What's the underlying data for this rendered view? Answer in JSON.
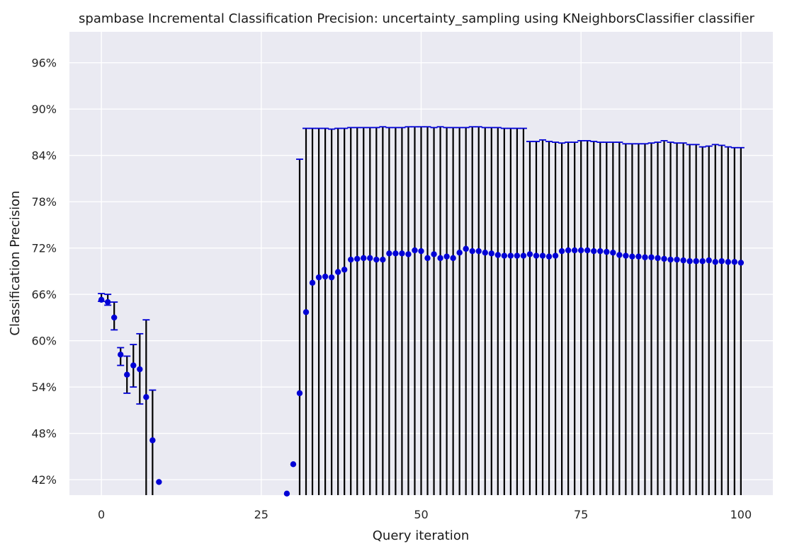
{
  "chart_data": {
    "type": "scatter",
    "title": "spambase Incremental Classification Precision: uncertainty_sampling using KNeighborsClassifier classifier",
    "xlabel": "Query iteration",
    "ylabel": "Classification Precision",
    "xlim": [
      -5,
      105
    ],
    "ylim": [
      0.4,
      1.0
    ],
    "xticks": [
      0,
      25,
      50,
      75,
      100
    ],
    "xtick_labels": [
      "0",
      "25",
      "50",
      "75",
      "100"
    ],
    "yticks": [
      0.42,
      0.48,
      0.54,
      0.6,
      0.66,
      0.72,
      0.78,
      0.84,
      0.9,
      0.96
    ],
    "ytick_labels": [
      "42%",
      "48%",
      "54%",
      "60%",
      "66%",
      "72%",
      "78%",
      "84%",
      "90%",
      "96%"
    ],
    "grid": true,
    "background": "#eaeaf2",
    "marker_color": "#0000d6",
    "errorbar_color": "#000000",
    "cap_color": "#0000d6",
    "x": [
      0,
      1,
      2,
      3,
      4,
      5,
      6,
      7,
      8,
      9,
      29,
      30,
      31,
      32,
      33,
      34,
      35,
      36,
      37,
      38,
      39,
      40,
      41,
      42,
      43,
      44,
      45,
      46,
      47,
      48,
      49,
      50,
      51,
      52,
      53,
      54,
      55,
      56,
      57,
      58,
      59,
      60,
      61,
      62,
      63,
      64,
      65,
      66,
      67,
      68,
      69,
      70,
      71,
      72,
      73,
      74,
      75,
      76,
      77,
      78,
      79,
      80,
      81,
      82,
      83,
      84,
      85,
      86,
      87,
      88,
      89,
      90,
      91,
      92,
      93,
      94,
      95,
      96,
      97,
      98,
      99,
      100
    ],
    "y": [
      0.653,
      0.65,
      0.63,
      0.582,
      0.556,
      0.568,
      0.563,
      0.527,
      0.471,
      0.417,
      0.402,
      0.44,
      0.532,
      0.637,
      0.675,
      0.682,
      0.683,
      0.682,
      0.689,
      0.692,
      0.705,
      0.706,
      0.707,
      0.707,
      0.705,
      0.705,
      0.713,
      0.713,
      0.713,
      0.712,
      0.717,
      0.716,
      0.707,
      0.712,
      0.707,
      0.709,
      0.707,
      0.714,
      0.719,
      0.716,
      0.716,
      0.714,
      0.713,
      0.711,
      0.71,
      0.71,
      0.71,
      0.71,
      0.712,
      0.71,
      0.71,
      0.709,
      0.71,
      0.716,
      0.717,
      0.717,
      0.717,
      0.717,
      0.716,
      0.716,
      0.715,
      0.714,
      0.711,
      0.71,
      0.709,
      0.709,
      0.708,
      0.708,
      0.707,
      0.706,
      0.705,
      0.705,
      0.704,
      0.703,
      0.703,
      0.703,
      0.704,
      0.702,
      0.703,
      0.702,
      0.702,
      0.701
    ],
    "yerr_low": [
      0.651,
      0.646,
      0.614,
      0.568,
      0.532,
      0.54,
      0.518,
      0.4,
      0.4,
      null,
      null,
      null,
      0.4,
      0.4,
      0.4,
      0.4,
      0.4,
      0.4,
      0.4,
      0.4,
      0.4,
      0.4,
      0.4,
      0.4,
      0.4,
      0.4,
      0.4,
      0.4,
      0.4,
      0.4,
      0.4,
      0.4,
      0.4,
      0.4,
      0.4,
      0.4,
      0.4,
      0.4,
      0.4,
      0.4,
      0.4,
      0.4,
      0.4,
      0.4,
      0.4,
      0.4,
      0.4,
      0.4,
      0.4,
      0.4,
      0.4,
      0.4,
      0.4,
      0.4,
      0.4,
      0.4,
      0.4,
      0.4,
      0.4,
      0.4,
      0.4,
      0.4,
      0.4,
      0.4,
      0.4,
      0.4,
      0.4,
      0.4,
      0.4,
      0.4,
      0.4,
      0.4,
      0.4,
      0.4,
      0.4,
      0.4,
      0.4,
      0.4,
      0.4,
      0.4,
      0.4,
      0.4
    ],
    "yerr_high": [
      0.661,
      0.66,
      0.65,
      0.591,
      0.58,
      0.595,
      0.609,
      0.627,
      0.536,
      null,
      null,
      null,
      0.835,
      0.875,
      0.875,
      0.875,
      0.875,
      0.874,
      0.875,
      0.875,
      0.876,
      0.876,
      0.876,
      0.876,
      0.876,
      0.877,
      0.876,
      0.876,
      0.876,
      0.877,
      0.877,
      0.877,
      0.877,
      0.876,
      0.877,
      0.876,
      0.876,
      0.876,
      0.876,
      0.877,
      0.877,
      0.876,
      0.876,
      0.876,
      0.875,
      0.875,
      0.875,
      0.875,
      0.858,
      0.858,
      0.86,
      0.858,
      0.857,
      0.856,
      0.857,
      0.857,
      0.859,
      0.859,
      0.858,
      0.857,
      0.857,
      0.857,
      0.857,
      0.855,
      0.855,
      0.855,
      0.855,
      0.856,
      0.857,
      0.859,
      0.857,
      0.856,
      0.856,
      0.854,
      0.854,
      0.851,
      0.852,
      0.854,
      0.853,
      0.851,
      0.85,
      0.85
    ]
  }
}
